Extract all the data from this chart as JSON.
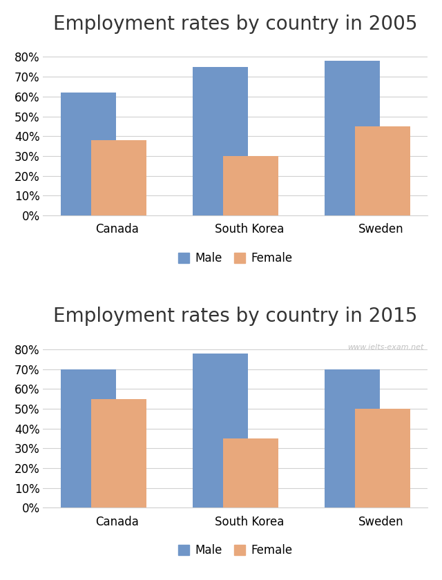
{
  "chart1": {
    "title": "Employment rates by country in 2005",
    "categories": [
      "Canada",
      "South Korea",
      "Sweden"
    ],
    "male": [
      0.62,
      0.75,
      0.78
    ],
    "female": [
      0.38,
      0.3,
      0.45
    ]
  },
  "chart2": {
    "title": "Employment rates by country in 2015",
    "categories": [
      "Canada",
      "South Korea",
      "Sweden"
    ],
    "male": [
      0.7,
      0.78,
      0.7
    ],
    "female": [
      0.55,
      0.35,
      0.5
    ],
    "watermark": "www.ielts-exam.net"
  },
  "male_color": "#7096c8",
  "female_color": "#e8a87c",
  "bar_width": 0.42,
  "bar_gap": 0.02,
  "ylim": [
    0,
    0.88
  ],
  "yticks": [
    0.0,
    0.1,
    0.2,
    0.3,
    0.4,
    0.5,
    0.6,
    0.7,
    0.8
  ],
  "ytick_labels": [
    "0%",
    "10%",
    "20%",
    "30%",
    "40%",
    "50%",
    "60%",
    "70%",
    "80%"
  ],
  "title_fontsize": 20,
  "tick_fontsize": 12,
  "legend_fontsize": 12,
  "background_color": "#ffffff",
  "grid_color": "#d0d0d0"
}
